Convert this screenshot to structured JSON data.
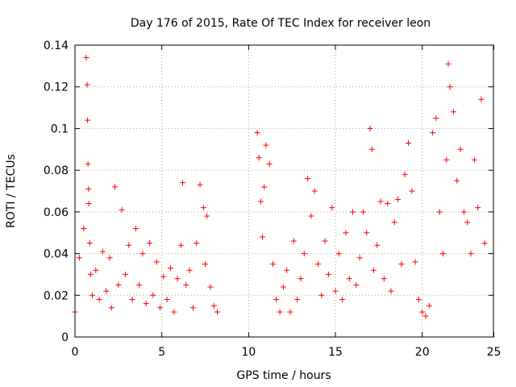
{
  "chart_data": {
    "type": "scatter",
    "title": "Day 176 of 2015, Rate Of TEC Index for receiver leon",
    "xlabel": "GPS time / hours",
    "ylabel": "ROTI / TECUs",
    "xlim": [
      0,
      24
    ],
    "ylim": [
      0,
      0.14
    ],
    "xticks": [
      0,
      5,
      10,
      15,
      20,
      25
    ],
    "yticks": [
      0,
      0.02,
      0.04,
      0.06,
      0.08,
      0.1,
      0.12,
      0.14
    ],
    "xtick_labels": [
      "0",
      "5",
      "10",
      "15",
      "20",
      "25"
    ],
    "ytick_labels": [
      "0",
      "0.02",
      "0.04",
      "0.06",
      "0.08",
      "0.1",
      "0.12",
      "0.14"
    ],
    "grid": true,
    "marker": "+",
    "color": "#ff0000",
    "series": [
      {
        "values_description_hint": "",
        "x": [
          0.0,
          0.25,
          0.5,
          0.65,
          0.7,
          0.72,
          0.75,
          0.78,
          0.8,
          0.85,
          0.9,
          1.0,
          1.2,
          1.4,
          1.6,
          1.8,
          2.0,
          2.1,
          2.3,
          2.5,
          2.7,
          2.9,
          3.1,
          3.3,
          3.5,
          3.7,
          3.9,
          4.1,
          4.3,
          4.5,
          4.7,
          4.9,
          5.1,
          5.3,
          5.5,
          5.7,
          5.9,
          6.1,
          6.2,
          6.4,
          6.6,
          6.8,
          7.0,
          7.2,
          7.4,
          7.5,
          7.6,
          7.8,
          8.0,
          8.2,
          10.5,
          10.6,
          10.7,
          10.8,
          10.9,
          11.0,
          11.2,
          11.4,
          11.6,
          11.8,
          12.0,
          12.2,
          12.4,
          12.6,
          12.8,
          13.0,
          13.2,
          13.4,
          13.6,
          13.8,
          14.0,
          14.2,
          14.4,
          14.6,
          14.8,
          15.0,
          15.2,
          15.4,
          15.6,
          15.8,
          16.0,
          16.2,
          16.4,
          16.6,
          16.8,
          17.0,
          17.1,
          17.2,
          17.4,
          17.6,
          17.8,
          18.0,
          18.2,
          18.4,
          18.6,
          18.8,
          19.0,
          19.2,
          19.4,
          19.6,
          19.8,
          20.0,
          20.2,
          20.4,
          20.6,
          20.8,
          21.0,
          21.2,
          21.4,
          21.5,
          21.6,
          21.8,
          22.0,
          22.2,
          22.4,
          22.6,
          22.8,
          23.0,
          23.2,
          23.4,
          23.6
        ],
        "values": [
          0.012,
          0.038,
          0.052,
          0.134,
          0.121,
          0.104,
          0.083,
          0.071,
          0.064,
          0.045,
          0.03,
          0.02,
          0.032,
          0.018,
          0.041,
          0.022,
          0.038,
          0.014,
          0.072,
          0.025,
          0.061,
          0.03,
          0.044,
          0.018,
          0.052,
          0.025,
          0.04,
          0.016,
          0.045,
          0.02,
          0.036,
          0.014,
          0.029,
          0.018,
          0.033,
          0.012,
          0.028,
          0.044,
          0.074,
          0.025,
          0.032,
          0.014,
          0.045,
          0.073,
          0.062,
          0.035,
          0.058,
          0.024,
          0.015,
          0.012,
          0.098,
          0.086,
          0.065,
          0.048,
          0.072,
          0.092,
          0.083,
          0.035,
          0.018,
          0.012,
          0.024,
          0.032,
          0.012,
          0.046,
          0.018,
          0.028,
          0.04,
          0.076,
          0.058,
          0.07,
          0.035,
          0.02,
          0.046,
          0.03,
          0.062,
          0.022,
          0.04,
          0.018,
          0.05,
          0.028,
          0.06,
          0.025,
          0.038,
          0.06,
          0.05,
          0.1,
          0.09,
          0.032,
          0.044,
          0.065,
          0.028,
          0.064,
          0.022,
          0.055,
          0.066,
          0.035,
          0.078,
          0.093,
          0.07,
          0.036,
          0.018,
          0.012,
          0.01,
          0.015,
          0.098,
          0.105,
          0.06,
          0.04,
          0.085,
          0.131,
          0.12,
          0.108,
          0.075,
          0.09,
          0.06,
          0.055,
          0.04,
          0.085,
          0.062,
          0.114,
          0.045
        ]
      }
    ]
  }
}
